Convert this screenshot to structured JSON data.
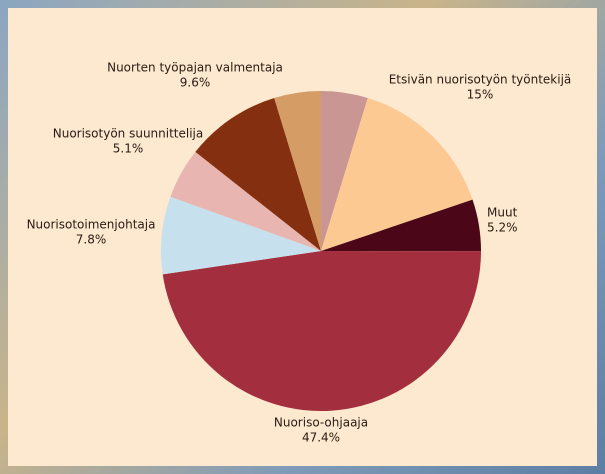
{
  "chart_data": {
    "type": "pie",
    "categories": [
      null,
      "Etsivän nuorisotyön työntekijä",
      "Muut",
      "Nuoriso-ohjaaja",
      "Nuorisotoimenjohtaja",
      "Nuorisotyön suunnittelija",
      "Nuorten työpajan valmentaja",
      null
    ],
    "values": [
      4.7,
      15,
      5.2,
      47.4,
      7.8,
      5.1,
      9.6,
      4.7
    ],
    "value_labels": [
      null,
      "15%",
      "5.2%",
      "47.4%",
      "7.8%",
      "5.1%",
      "9.6%",
      null
    ],
    "colors": [
      "#c99694",
      "#fdc993",
      "#4b0718",
      "#a32e3e",
      "#c6e1ed",
      "#e8b5b1",
      "#843010",
      "#d69c66"
    ]
  }
}
